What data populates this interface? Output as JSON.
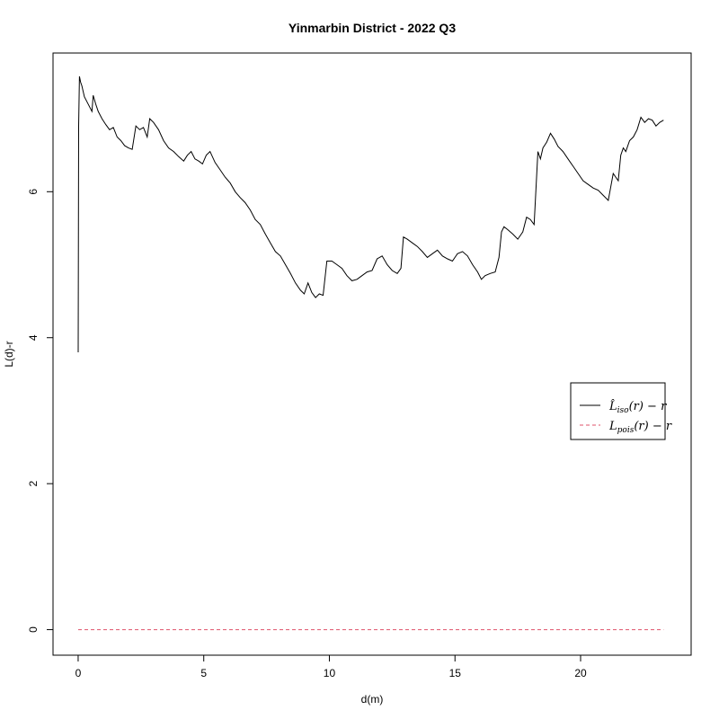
{
  "chart_data": {
    "type": "line",
    "title": "Yinmarbin District - 2022 Q3",
    "xlabel": "d(m)",
    "ylabel": "L(d)-r",
    "xlim": [
      -1.0,
      24.4
    ],
    "ylim": [
      -0.35,
      7.9
    ],
    "x_ticks": [
      0,
      5,
      10,
      15,
      20
    ],
    "y_ticks": [
      0,
      2,
      4,
      6
    ],
    "grid": false,
    "legend_position": "right",
    "legend": [
      {
        "label": "L̂iso(r) − r",
        "main": "L̂",
        "sub": "iso",
        "rest": "(r) − r",
        "style": "solid",
        "color": "#000000"
      },
      {
        "label": "Lpois(r) − r",
        "main": "L",
        "sub": "pois",
        "rest": "(r) − r",
        "style": "dashed",
        "color": "#df536b"
      }
    ],
    "series": [
      {
        "style": "solid",
        "color": "#000000",
        "x": [
          0.0,
          0.02,
          0.05,
          0.1,
          0.15,
          0.25,
          0.4,
          0.55,
          0.6,
          0.7,
          0.8,
          0.95,
          1.1,
          1.25,
          1.4,
          1.55,
          1.7,
          1.85,
          2.0,
          2.15,
          2.3,
          2.45,
          2.6,
          2.75,
          2.85,
          3.0,
          3.2,
          3.4,
          3.6,
          3.8,
          4.0,
          4.2,
          4.35,
          4.5,
          4.65,
          4.8,
          4.95,
          5.1,
          5.25,
          5.45,
          5.65,
          5.85,
          6.05,
          6.25,
          6.45,
          6.65,
          6.85,
          7.05,
          7.25,
          7.45,
          7.65,
          7.85,
          8.05,
          8.25,
          8.45,
          8.65,
          8.85,
          9.0,
          9.15,
          9.3,
          9.45,
          9.6,
          9.75,
          9.9,
          10.1,
          10.3,
          10.5,
          10.7,
          10.9,
          11.1,
          11.3,
          11.5,
          11.7,
          11.9,
          12.1,
          12.3,
          12.5,
          12.7,
          12.85,
          12.95,
          13.1,
          13.3,
          13.5,
          13.7,
          13.9,
          14.1,
          14.3,
          14.5,
          14.7,
          14.9,
          15.1,
          15.3,
          15.5,
          15.7,
          15.9,
          16.05,
          16.2,
          16.4,
          16.6,
          16.75,
          16.85,
          16.95,
          17.1,
          17.3,
          17.5,
          17.7,
          17.85,
          18.0,
          18.15,
          18.3,
          18.4,
          18.5,
          18.65,
          18.8,
          18.95,
          19.1,
          19.3,
          19.5,
          19.7,
          19.9,
          20.1,
          20.3,
          20.5,
          20.7,
          20.9,
          21.1,
          21.3,
          21.4,
          21.5,
          21.6,
          21.7,
          21.8,
          21.95,
          22.1,
          22.25,
          22.4,
          22.55,
          22.7,
          22.85,
          23.0,
          23.15,
          23.3
        ],
        "y": [
          3.8,
          6.9,
          7.58,
          7.5,
          7.45,
          7.3,
          7.2,
          7.1,
          7.32,
          7.2,
          7.1,
          7.0,
          6.92,
          6.85,
          6.88,
          6.75,
          6.7,
          6.63,
          6.6,
          6.58,
          6.9,
          6.85,
          6.88,
          6.75,
          7.0,
          6.95,
          6.85,
          6.7,
          6.6,
          6.55,
          6.48,
          6.42,
          6.5,
          6.55,
          6.45,
          6.42,
          6.38,
          6.5,
          6.55,
          6.4,
          6.3,
          6.2,
          6.12,
          6.0,
          5.92,
          5.85,
          5.75,
          5.62,
          5.55,
          5.42,
          5.3,
          5.18,
          5.12,
          5.0,
          4.88,
          4.75,
          4.65,
          4.6,
          4.75,
          4.62,
          4.55,
          4.6,
          4.58,
          5.05,
          5.05,
          5.0,
          4.95,
          4.85,
          4.78,
          4.8,
          4.85,
          4.9,
          4.92,
          5.08,
          5.12,
          5.0,
          4.92,
          4.88,
          4.95,
          5.38,
          5.35,
          5.3,
          5.25,
          5.18,
          5.1,
          5.15,
          5.2,
          5.12,
          5.08,
          5.05,
          5.15,
          5.18,
          5.12,
          5.0,
          4.9,
          4.8,
          4.85,
          4.88,
          4.9,
          5.1,
          5.45,
          5.52,
          5.48,
          5.42,
          5.35,
          5.45,
          5.65,
          5.62,
          5.55,
          6.55,
          6.45,
          6.6,
          6.68,
          6.8,
          6.72,
          6.62,
          6.55,
          6.45,
          6.35,
          6.25,
          6.15,
          6.1,
          6.05,
          6.02,
          5.95,
          5.88,
          6.25,
          6.2,
          6.15,
          6.5,
          6.6,
          6.55,
          6.7,
          6.75,
          6.85,
          7.02,
          6.95,
          7.0,
          6.98,
          6.9,
          6.95,
          6.98
        ]
      },
      {
        "style": "dashed",
        "color": "#df536b",
        "x": [
          0.0,
          23.3
        ],
        "y": [
          0.0,
          0.0
        ]
      }
    ]
  }
}
